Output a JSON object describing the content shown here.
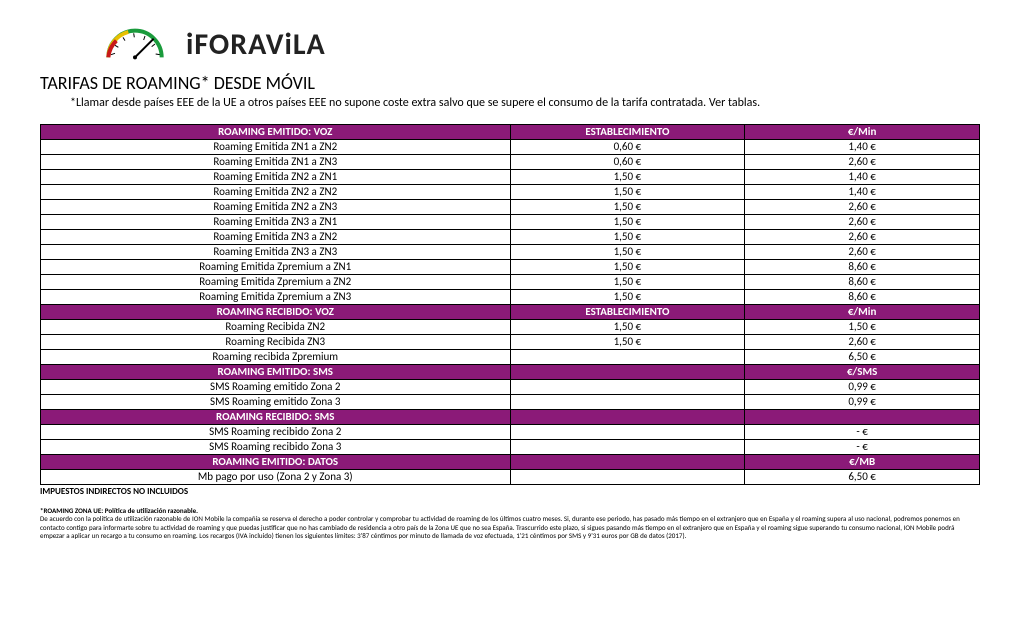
{
  "brand": "iFORAViLA",
  "title": "TARIFAS DE ROAMING* DESDE MÓVIL",
  "subtitle": "*Llamar desde países EEE de la UE a otros países EEE no supone coste extra salvo que se supere el consumo de la tarifa contratada. Ver tablas.",
  "colors": {
    "header_bg": "#8b1a78",
    "header_fg": "#ffffff",
    "border": "#000000"
  },
  "sections": [
    {
      "header": [
        "ROAMING EMITIDO: VOZ",
        "ESTABLECIMIENTO",
        "€/Min"
      ],
      "rows": [
        [
          "Roaming Emitida ZN1 a ZN2",
          "0,60 €",
          "1,40 €"
        ],
        [
          "Roaming Emitida ZN1 a ZN3",
          "0,60 €",
          "2,60 €"
        ],
        [
          "Roaming Emitida ZN2 a ZN1",
          "1,50 €",
          "1,40 €"
        ],
        [
          "Roaming Emitida ZN2 a ZN2",
          "1,50 €",
          "1,40 €"
        ],
        [
          "Roaming Emitida ZN2 a ZN3",
          "1,50 €",
          "2,60 €"
        ],
        [
          "Roaming Emitida ZN3 a ZN1",
          "1,50 €",
          "2,60 €"
        ],
        [
          "Roaming Emitida ZN3 a ZN2",
          "1,50 €",
          "2,60 €"
        ],
        [
          "Roaming Emitida ZN3 a ZN3",
          "1,50 €",
          "2,60 €"
        ],
        [
          "Roaming Emitida Zpremium a ZN1",
          "1,50 €",
          "8,60 €"
        ],
        [
          "Roaming Emitida Zpremium a ZN2",
          "1,50 €",
          "8,60 €"
        ],
        [
          "Roaming Emitida Zpremium a ZN3",
          "1,50 €",
          "8,60 €"
        ]
      ]
    },
    {
      "header": [
        "ROAMING RECIBIDO: VOZ",
        "ESTABLECIMIENTO",
        "€/Min"
      ],
      "rows": [
        [
          "Roaming Recibida ZN2",
          "1,50 €",
          "1,50 €"
        ],
        [
          "Roaming Recibida ZN3",
          "1,50 €",
          "2,60 €"
        ],
        [
          "Roaming recibida Zpremium",
          "",
          "6,50 €"
        ]
      ]
    },
    {
      "header": [
        "ROAMING EMITIDO: SMS",
        "",
        "€/SMS"
      ],
      "rows": [
        [
          "SMS Roaming emitido Zona 2",
          "",
          "0,99 €"
        ],
        [
          "SMS Roaming emitido Zona 3",
          "",
          "0,99 €"
        ]
      ]
    },
    {
      "header": [
        "ROAMING RECIBIDO: SMS",
        "",
        ""
      ],
      "rows": [
        [
          "SMS Roaming recibido Zona 2",
          "",
          "-   €"
        ],
        [
          "SMS Roaming recibido Zona 3",
          "",
          "-   €"
        ]
      ]
    },
    {
      "header": [
        "ROAMING EMITIDO: DATOS",
        "",
        "€/MB"
      ],
      "rows": [
        [
          "Mb pago por uso (Zona 2 y Zona 3)",
          "",
          "6,50 €"
        ]
      ]
    }
  ],
  "tax_note": "IMPUESTOS INDIRECTOS NO INCLUIDOS",
  "policy_title": "*ROAMING ZONA UE: Política de utilización razonable.",
  "policy_body": "De acuerdo con la política de utilización razonable de ION Mobile la compañía se reserva el derecho a poder controlar y comprobar tu actividad de roaming de los últimos cuatro meses. Si, durante ese periodo, has pasado más tiempo en el extranjero que en España y el roaming supera al uso nacional, podremos ponernos en contacto contigo para informarte sobre tu actividad de roaming y que puedas justificar que no has cambiado de residencia a otro país de la Zona UE que no sea España. Trascurrido este plazo, si sigues pasando más tiempo en el extranjero que en España y el roaming sigue superando tu consumo nacional, ION Mobile podrá empezar a aplicar un recargo a tu consumo en roaming. Los recargos (IVA incluido) tienen los siguientes límites: 3'87 céntimos por minuto de llamada de voz efectuada, 1'21 céntimos por SMS y 9'31 euros por GB de datos (2017)."
}
